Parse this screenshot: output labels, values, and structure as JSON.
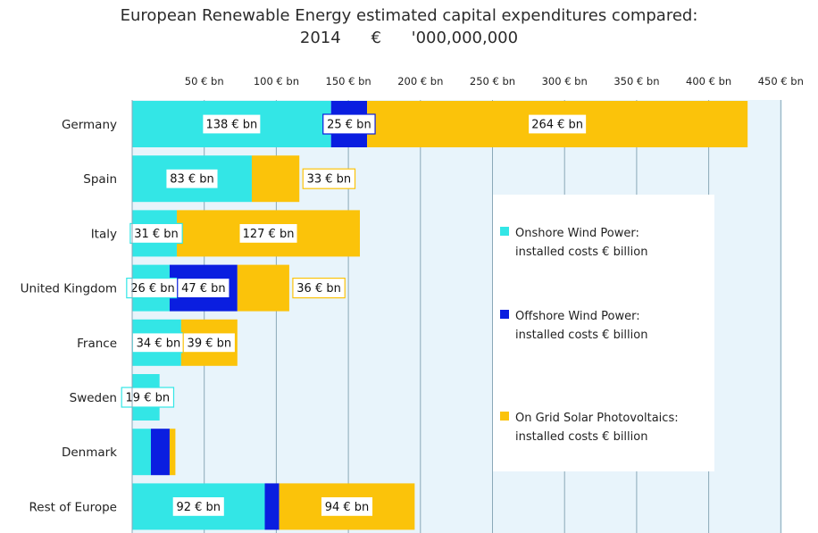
{
  "chart_data": {
    "type": "bar",
    "orientation": "horizontal",
    "stacked": true,
    "title": "European Renewable Energy estimated capital expenditures compared:",
    "subtitle_year": "2014",
    "subtitle_unit": "€ '000,000,000",
    "xlim": [
      0,
      450
    ],
    "xticks": [
      50,
      100,
      150,
      200,
      250,
      300,
      350,
      400,
      450
    ],
    "xtick_labels": [
      "50 € bn",
      "100 € bn",
      "150 € bn",
      "200 € bn",
      "250 € bn",
      "300 € bn",
      "350 € bn",
      "400 € bn",
      "450 € bn"
    ],
    "grid": true,
    "legend_position": "right",
    "categories": [
      "Germany",
      "Spain",
      "Italy",
      "United Kingdom",
      "France",
      "Sweden",
      "Denmark",
      "Rest of Europe"
    ],
    "series": [
      {
        "name": "Onshore Wind Power: installed costs € billion",
        "legend_lines": [
          "Onshore Wind Power:",
          "installed costs € billion"
        ],
        "color": "#33e6e6",
        "values": [
          138,
          83,
          31,
          26,
          34,
          19,
          13,
          92
        ],
        "labels": [
          "138 € bn",
          "83 € bn",
          "31 € bn",
          "26 € bn",
          "34 € bn",
          "19 € bn",
          "",
          "92 € bn"
        ]
      },
      {
        "name": "Offshore Wind Power: installed costs € billion",
        "legend_lines": [
          "Offshore Wind Power:",
          "installed costs € billion"
        ],
        "color": "#0a1ee0",
        "values": [
          25,
          0,
          0,
          47,
          0,
          0,
          13,
          10
        ],
        "labels": [
          "25 € bn",
          "",
          "",
          "47 € bn",
          "",
          "",
          "",
          ""
        ]
      },
      {
        "name": "On Grid Solar Photovoltaics: installed costs € billion",
        "legend_lines": [
          "On Grid Solar Photovoltaics:",
          "installed costs € billion"
        ],
        "color": "#fbc30a",
        "values": [
          264,
          33,
          127,
          36,
          39,
          0,
          4,
          94
        ],
        "labels": [
          "264 € bn",
          "33 € bn",
          "127 € bn",
          "36 € bn",
          "39 € bn",
          "",
          "",
          "94 € bn"
        ]
      }
    ]
  }
}
